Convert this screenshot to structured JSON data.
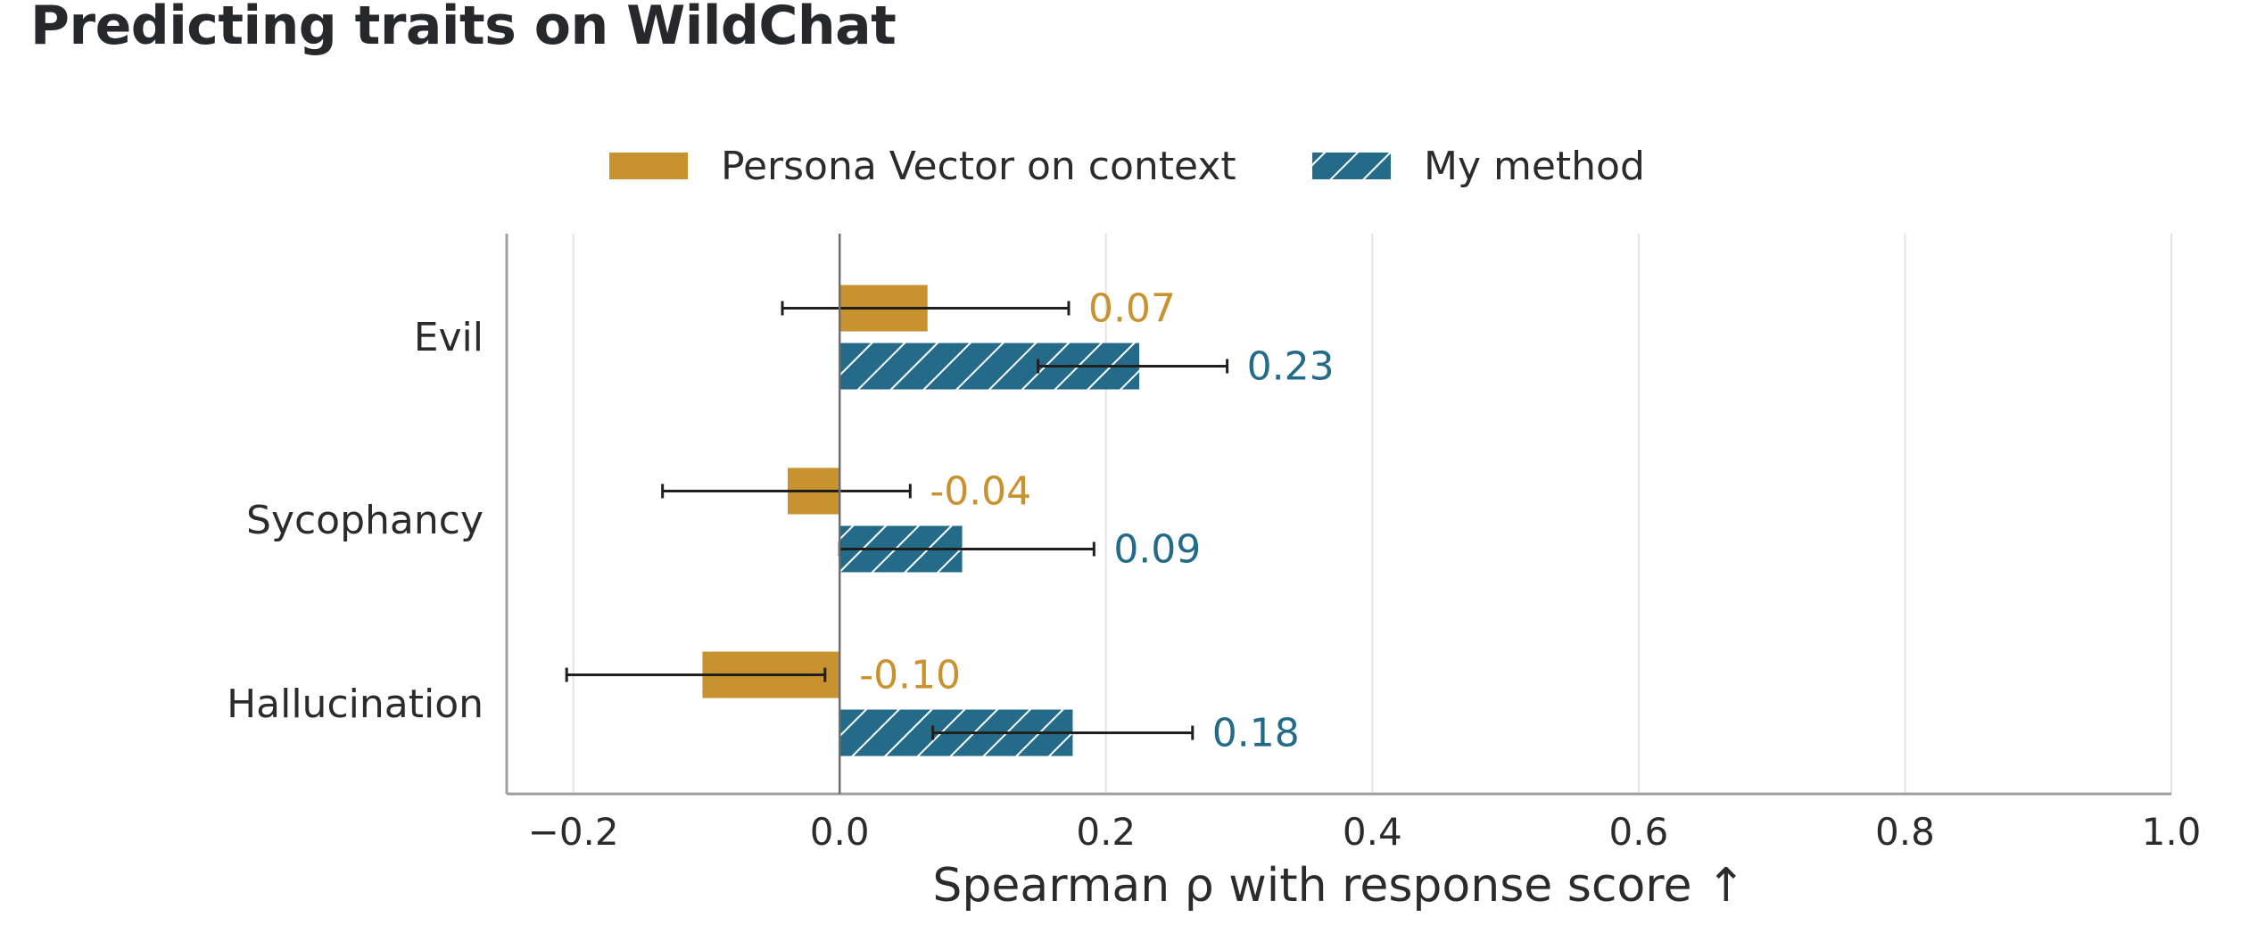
{
  "chart_data": {
    "type": "bar",
    "orientation": "horizontal",
    "title": "Predicting traits on WildChat",
    "xlabel": "Spearman ρ with response score  ↑",
    "ylabel": "",
    "xlim": [
      -0.25,
      1.0
    ],
    "x_ticks": [
      -0.2,
      0.0,
      0.2,
      0.4,
      0.6,
      0.8,
      1.0
    ],
    "x_tick_labels": [
      "−0.2",
      "0.0",
      "0.2",
      "0.4",
      "0.6",
      "0.8",
      "1.0"
    ],
    "grid": "vertical",
    "legend_position": "top-center",
    "categories": [
      "Evil",
      "Sycophancy",
      "Hallucination"
    ],
    "series": [
      {
        "name": "Persona Vector on context",
        "color": "#C8922E",
        "pattern": "solid",
        "values": [
          0.066,
          -0.039,
          -0.103
        ],
        "value_labels": [
          "0.07",
          "-0.04",
          "-0.10"
        ],
        "error_low": [
          -0.043,
          -0.133,
          -0.205
        ],
        "error_high": [
          0.172,
          0.053,
          -0.011
        ]
      },
      {
        "name": "My method",
        "color": "#236B88",
        "pattern": "hatch",
        "values": [
          0.225,
          0.092,
          0.175
        ],
        "value_labels": [
          "0.23",
          "0.09",
          "0.18"
        ],
        "error_low": [
          0.149,
          0.0,
          0.07
        ],
        "error_high": [
          0.291,
          0.191,
          0.265
        ]
      }
    ]
  }
}
